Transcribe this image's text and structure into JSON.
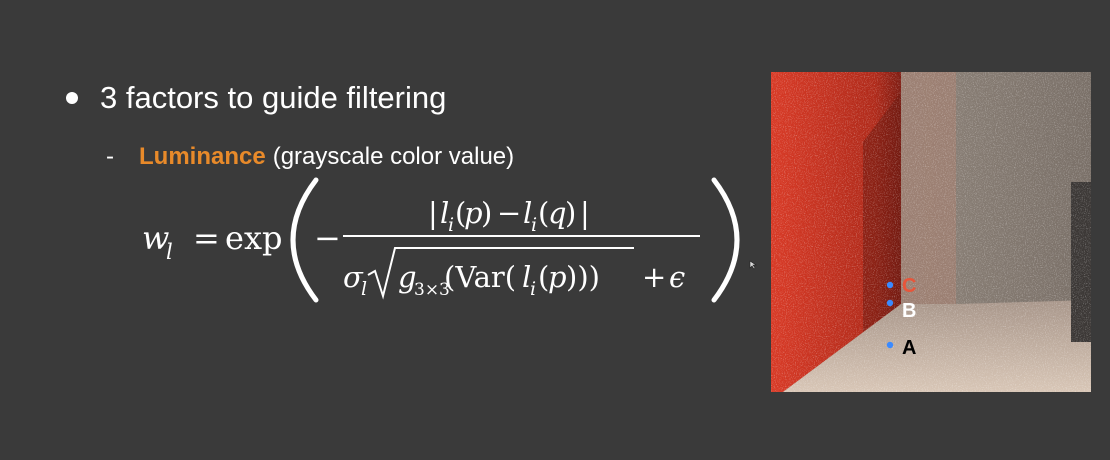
{
  "slide": {
    "bullet": "3 factors to guide filtering",
    "sub_dash": "-",
    "sub_term": "Luminance",
    "sub_desc": "(grayscale color value)"
  },
  "formula": {
    "lhs": "w",
    "lhs_sub": "l",
    "equals": "=",
    "func": "exp",
    "minus": "−",
    "numerator": "| l_i(p) − l_i(q) |",
    "denominator": "σ_l √( g_3×3(Var(l_i(p))) ) + ε"
  },
  "image": {
    "labels": [
      "C",
      "B",
      "A"
    ],
    "label_colors": [
      "#e8553a",
      "#ffffff",
      "#000000"
    ],
    "point_color": "#3a8aff",
    "wall_left_color": "#c0301f",
    "wall_right_color": "#8a7f73",
    "floor_color": "#c9b8a8"
  },
  "icons": {
    "cursor": "mouse-pointer-icon"
  }
}
